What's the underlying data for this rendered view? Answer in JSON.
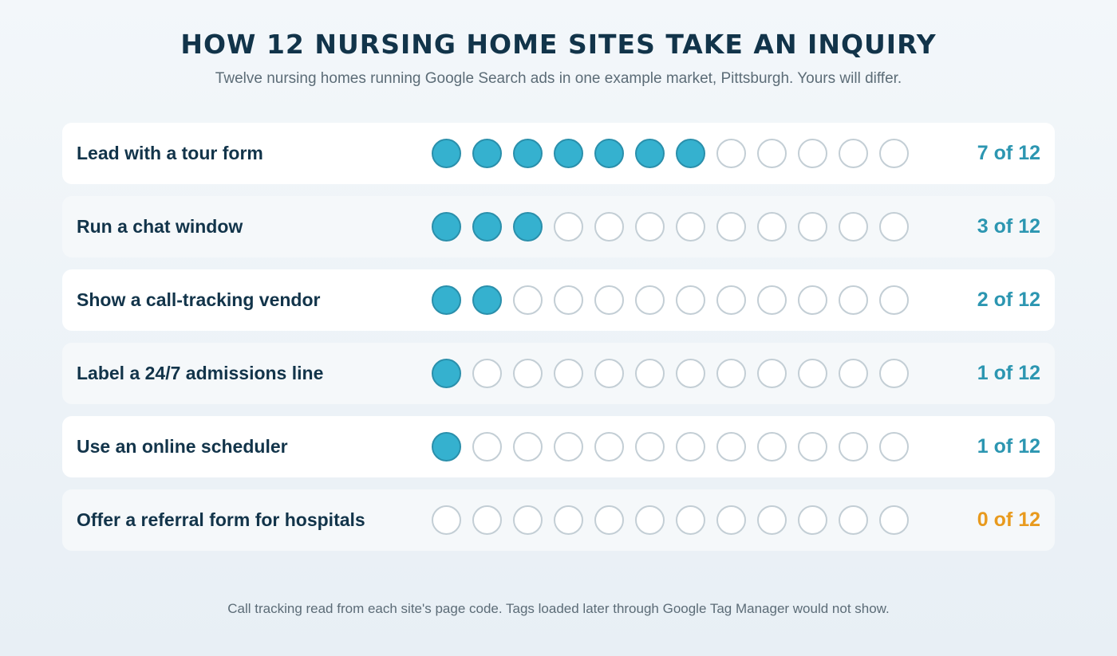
{
  "title": "HOW 12 NURSING HOME SITES TAKE AN INQUIRY",
  "subtitle": "Twelve nursing homes running Google Search ads in one example market, Pittsburgh. Yours will differ.",
  "footnote": "Call tracking read from each site's page code. Tags loaded later through Google Tag Manager would not show.",
  "colors": {
    "filled": "#35b1cf",
    "count": "#2c96b1",
    "zero_count": "#e89a1e",
    "text": "#12344a"
  },
  "chart_data": {
    "type": "bar",
    "total": 12,
    "categories": [
      "Lead with a tour form",
      "Run a chat window",
      "Show a call-tracking vendor",
      "Label a 24/7 admissions line",
      "Use an online scheduler",
      "Offer a referral form for hospitals"
    ],
    "values": [
      7,
      3,
      2,
      1,
      1,
      0
    ],
    "value_labels": [
      "7 of 12",
      "3 of 12",
      "2 of 12",
      "1 of 12",
      "1 of 12",
      "0 of 12"
    ]
  }
}
